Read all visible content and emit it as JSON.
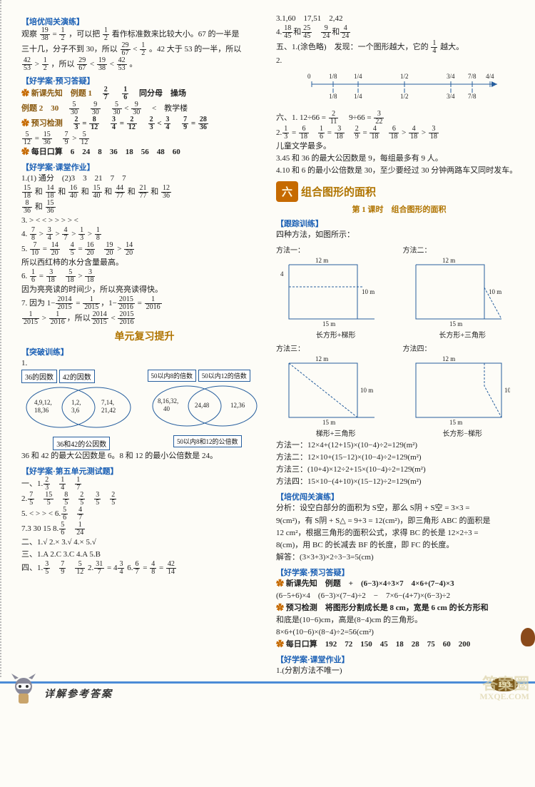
{
  "page_number": "193",
  "footer_text": "详解参考答案",
  "watermark_lines": [
    "答案圈",
    "MXQE.COM"
  ],
  "left": {
    "sec1_label": "【培优闯关演练】",
    "sec1_l1a": "观察",
    "sec1_fr1": {
      "n": "19",
      "d": "38"
    },
    "sec1_l1b": " = ",
    "sec1_fr2": {
      "n": "1",
      "d": "2"
    },
    "sec1_l1c": "，可以把",
    "sec1_fr3": {
      "n": "1",
      "d": "2"
    },
    "sec1_l1d": "看作标准数来比较大小。67 的一半是",
    "sec1_l2a": "三十几，分子不到 30，所以",
    "sec1_fr4": {
      "n": "29",
      "d": "67"
    },
    "sec1_l2b": " < ",
    "sec1_fr5": {
      "n": "1",
      "d": "2"
    },
    "sec1_l2c": "。42 大于 53 的一半，所以",
    "sec1_l3_fr1": {
      "n": "42",
      "d": "53"
    },
    "sec1_l3a": " > ",
    "sec1_l3_fr2": {
      "n": "1",
      "d": "2"
    },
    "sec1_l3b": "，所以",
    "sec1_l3_fr3": {
      "n": "29",
      "d": "67"
    },
    "sec1_l3c": " < ",
    "sec1_l3_fr4": {
      "n": "19",
      "d": "38"
    },
    "sec1_l3d": " < ",
    "sec1_l3_fr5": {
      "n": "42",
      "d": "53"
    },
    "sec1_l3e": "。",
    "sec2_label": "【好学案·预习答疑】",
    "sec2_l1": "新课先知　例题 1　",
    "sec2_fr1": {
      "n": "2",
      "d": "7"
    },
    "sec2_sp": "　",
    "sec2_fr2": {
      "n": "1",
      "d": "6"
    },
    "sec2_l1b": "　同分母　操场",
    "sec2_l2a": "例题 2　30　",
    "sec2_fr3": {
      "n": "5",
      "d": "30"
    },
    "sec2_fr4": {
      "n": "9",
      "d": "30"
    },
    "sec2_fr5": {
      "n": "5",
      "d": "30"
    },
    "sec2_l2b": " < ",
    "sec2_fr6": {
      "n": "9",
      "d": "30"
    },
    "sec2_l2c": "　<　教学楼",
    "sec2_l3": "预习检测　",
    "sec2_fr7": {
      "n": "2",
      "d": "3"
    },
    "eq": " = ",
    "sec2_fr8": {
      "n": "8",
      "d": "12"
    },
    "sec2_fr9": {
      "n": "3",
      "d": "4"
    },
    "sec2_fr10": {
      "n": "2",
      "d": "12"
    },
    "sec2_fr11": {
      "n": "2",
      "d": "3"
    },
    "lt": " < ",
    "sec2_fr12": {
      "n": "3",
      "d": "4"
    },
    "sec2_fr13": {
      "n": "7",
      "d": "9"
    },
    "sec2_fr14": {
      "n": "28",
      "d": "36"
    },
    "sec2_l4_fr1": {
      "n": "5",
      "d": "12"
    },
    "sec2_l4_fr2": {
      "n": "15",
      "d": "36"
    },
    "sec2_l4_fr3": {
      "n": "7",
      "d": "9"
    },
    "gt": " > ",
    "sec2_l4_fr4": {
      "n": "5",
      "d": "12"
    },
    "sec2_l5": "每日口算　6　24　8　36　18　56　48　60",
    "sec3_label": "【好学案·课堂作业】",
    "sec3_l1": "1.(1) 通分　(2)3　3　21　7　7",
    "sec3_l2_pairs": [
      {
        "n": "15",
        "d": "18"
      },
      {
        "n": "14",
        "d": "18"
      },
      {
        "n": "16",
        "d": "40"
      },
      {
        "n": "15",
        "d": "40"
      },
      {
        "n": "44",
        "d": "77"
      },
      {
        "n": "21",
        "d": "77"
      },
      {
        "n": "12",
        "d": "36"
      }
    ],
    "sec3_l2b": "和",
    "sec3_l2_pairs2": [
      {
        "n": "8",
        "d": "36"
      },
      {
        "n": "15",
        "d": "36"
      }
    ],
    "sec3_l3": "3. > < < > > > > <",
    "sec3_l4_pairs": [
      {
        "n": "7",
        "d": "8"
      },
      {
        "n": "3",
        "d": "4"
      },
      {
        "n": "4",
        "d": "7"
      },
      {
        "n": "1",
        "d": "3"
      },
      {
        "n": "1",
        "d": "8"
      }
    ],
    "sec3_l5_fr": [
      {
        "n": "7",
        "d": "10"
      },
      {
        "n": "14",
        "d": "20"
      },
      {
        "n": "4",
        "d": "5"
      },
      {
        "n": "16",
        "d": "20"
      },
      {
        "n": "19",
        "d": "20"
      },
      {
        "n": "14",
        "d": "20"
      }
    ],
    "sec3_l5b": "所以西红柿的水分含量最高。",
    "sec3_l6_fr": [
      {
        "n": "1",
        "d": "6"
      },
      {
        "n": "3",
        "d": "18"
      },
      {
        "n": "5",
        "d": "18"
      },
      {
        "n": "3",
        "d": "18"
      }
    ],
    "sec3_l6b": "因为亮亮读的时间少，所以亮亮读得快。",
    "sec3_l7a": "7. 因为 1−",
    "sec3_l7_fr": [
      {
        "n": "2014",
        "d": "2015"
      },
      {
        "n": "1",
        "d": "2015"
      },
      {
        "n": "2015",
        "d": "2016"
      },
      {
        "n": "1",
        "d": "2016"
      }
    ],
    "sec3_l8_fr": [
      {
        "n": "1",
        "d": "2015"
      },
      {
        "n": "1",
        "d": "2016"
      },
      {
        "n": "2014",
        "d": "2015"
      },
      {
        "n": "2015",
        "d": "2016"
      }
    ],
    "unit_review": "单元复习提升",
    "sec4_label": "【突破训练】",
    "venn": {
      "left": {
        "t1": "36的因数",
        "t2": "42的因数",
        "a": "4,9,12,\n18,36",
        "b": "1,2,\n3,6",
        "c": "7,14,\n21,42",
        "bot": "36和42的公因数"
      },
      "right": {
        "t1": "50以内8的倍数",
        "t2": "50以内12的倍数",
        "a": "8,16,32,\n40",
        "b": "24,48",
        "c": "12,36",
        "bot": "50以内8和12的公倍数"
      }
    },
    "sec4_l2": "36 和 42 的最大公因数是 6。8 和 12 的最小公倍数是 24。",
    "sec5_label": "【好学案·第五单元测试题】",
    "sec5_t1_fr": [
      {
        "n": "2",
        "d": "3"
      },
      {
        "n": "1",
        "d": "4"
      },
      {
        "n": "1",
        "d": "7"
      }
    ],
    "sec5_t2_fr": [
      {
        "n": "7",
        "d": "5"
      },
      {
        "n": "15",
        "d": "5"
      },
      {
        "n": "8",
        "d": "5"
      },
      {
        "n": "2",
        "d": "5"
      },
      {
        "n": "3",
        "d": "5"
      },
      {
        "n": "2",
        "d": "5"
      }
    ],
    "sec5_t3": "5. < > > <  6.",
    "sec5_t3_fr": [
      {
        "n": "5",
        "d": "6"
      },
      {
        "n": "4",
        "d": "7"
      }
    ],
    "sec5_t4": "7.3 30 15  8.",
    "sec5_t4_fr": [
      {
        "n": "5",
        "d": "6"
      },
      {
        "n": "1",
        "d": "24"
      }
    ],
    "sec5_t5": "二、1.√  2.×  3.√  4.×  5.√",
    "sec5_t6": "三、1.A  2.C  3.C  4.A  5.B",
    "sec5_t7a": "四、1.",
    "sec5_t7_fr": [
      {
        "n": "3",
        "d": "5"
      },
      {
        "n": "7",
        "d": "9"
      },
      {
        "n": "5",
        "d": "12"
      }
    ],
    "sec5_t7b": "  2.",
    "sec5_t7_fr2": [
      {
        "n": "31",
        "d": "7"
      },
      {
        "n": "3",
        "d": "4"
      }
    ],
    "sec5_t7c": "  6.",
    "sec5_t7_fr3": [
      {
        "n": "6",
        "d": "7"
      },
      {
        "n": "4",
        "d": "8"
      },
      {
        "n": "42",
        "d": "14"
      }
    ]
  },
  "right": {
    "l1": "3.1,60　17,51　2,42",
    "l2a": "4.",
    "l2_fr": [
      {
        "n": "18",
        "d": "45"
      },
      {
        "n": "25",
        "d": "45"
      },
      {
        "n": "9",
        "d": "24"
      },
      {
        "n": "4",
        "d": "24"
      }
    ],
    "l3a": "五、1.(涂色略)　发现：一个图形越大，它的",
    "l3_fr": {
      "n": "1",
      "d": "4"
    },
    "l3b": "越大。",
    "l4": "2.",
    "numline": {
      "marks": [
        "0",
        "1/8",
        "1/4",
        "1/2",
        "3/4",
        "7/8",
        "4/4"
      ],
      "below": [
        "1/8",
        "1/4",
        "1/2",
        "3/4",
        "7/8"
      ]
    },
    "l5a": "六、1. 12÷66 = ",
    "l5_fr1": {
      "n": "2",
      "d": "11"
    },
    "l5b": "　9÷66 = ",
    "l5_fr2": {
      "n": "3",
      "d": "22"
    },
    "l6a": "2.",
    "l6_fr": [
      {
        "n": "1",
        "d": "3"
      },
      {
        "n": "6",
        "d": "18"
      },
      {
        "n": "1",
        "d": "6"
      },
      {
        "n": "3",
        "d": "18"
      },
      {
        "n": "2",
        "d": "9"
      },
      {
        "n": "4",
        "d": "18"
      },
      {
        "n": "6",
        "d": "18"
      },
      {
        "n": "4",
        "d": "18"
      },
      {
        "n": "3",
        "d": "18"
      }
    ],
    "l6b": "儿童文学最多。",
    "l7": "3.45 和 36 的最大公因数是 9，每组最多有 9 人。",
    "l8": "4.10 和 6 的最小公倍数是 30，至少要经过 30 分钟两路车又同时发车。",
    "unit_hex": "六",
    "unit_title": "组合图形的面积",
    "sub": "第 1 课时　组合图形的面积",
    "sec_trace": "【跟踪训练】",
    "trace_l1": "四种方法，如图所示：",
    "shapes": {
      "top_w": "12 m",
      "right_h": "10 m",
      "bot_w": "15 m",
      "off_h": "4",
      "caps": [
        "长方形+梯形",
        "长方形+三角形",
        "梯形+三角形",
        "长方形−梯形"
      ],
      "labels": [
        "方法一：",
        "方法二：",
        "方法三：",
        "方法四："
      ]
    },
    "m1": "方法一：12×4+(12+15)×(10−4)÷2=129(m²)",
    "m2": "方法二：12×10+(15−12)×(10−4)÷2=129(m²)",
    "m3": "方法三：(10+4)×12÷2+15×(10−4)÷2=129(m²)",
    "m4": "方法四：15×10−(4+10)×(15−12)÷2=129(m²)",
    "sec_adv": "【培优闯关演练】",
    "adv1": "分析：设空白部分的面积为 S空，那么 S阴 + S空 = 3×3 =",
    "adv2": "9(cm²)，有 S阴 + S△ = 9+3 = 12(cm²)，即三角形 ABC 的面积是",
    "adv3": "12 cm²，根据三角形的面积公式，求得 BC 的长是 12×2÷3 =",
    "adv4": "8(cm)，用 BC 的长减去 BF 的长度，即 FC 的长度。",
    "adv5": "解答：(3×3+3)×2÷3−3=5(cm)",
    "sec_pre": "【好学案·预习答疑】",
    "pre1": "新课先知　例题　+　(6−3)×4÷3×7　4×6+(7−4)×3",
    "pre2": "(6−5+6)×4　(6−3)×(7−4)÷2　−　7×6−(4+7)×(6−3)÷2",
    "pre3": "预习检测　将图形分割成长是 8 cm，宽是 6 cm 的长方形和",
    "pre4": "和底是(10−6)cm，高是(8−4)cm 的三角形。",
    "pre5": "8×6+(10−6)×(8−4)÷2=56(cm²)",
    "pre6": "每日口算　192　72　150　45　18　28　75　60　200",
    "sec_cls": "【好学案·课堂作业】",
    "cls1": "1.(分割方法不唯一)"
  },
  "colors": {
    "label": "#1a5fb4",
    "brown": "#8a5a10",
    "hex": "#c66a00"
  }
}
